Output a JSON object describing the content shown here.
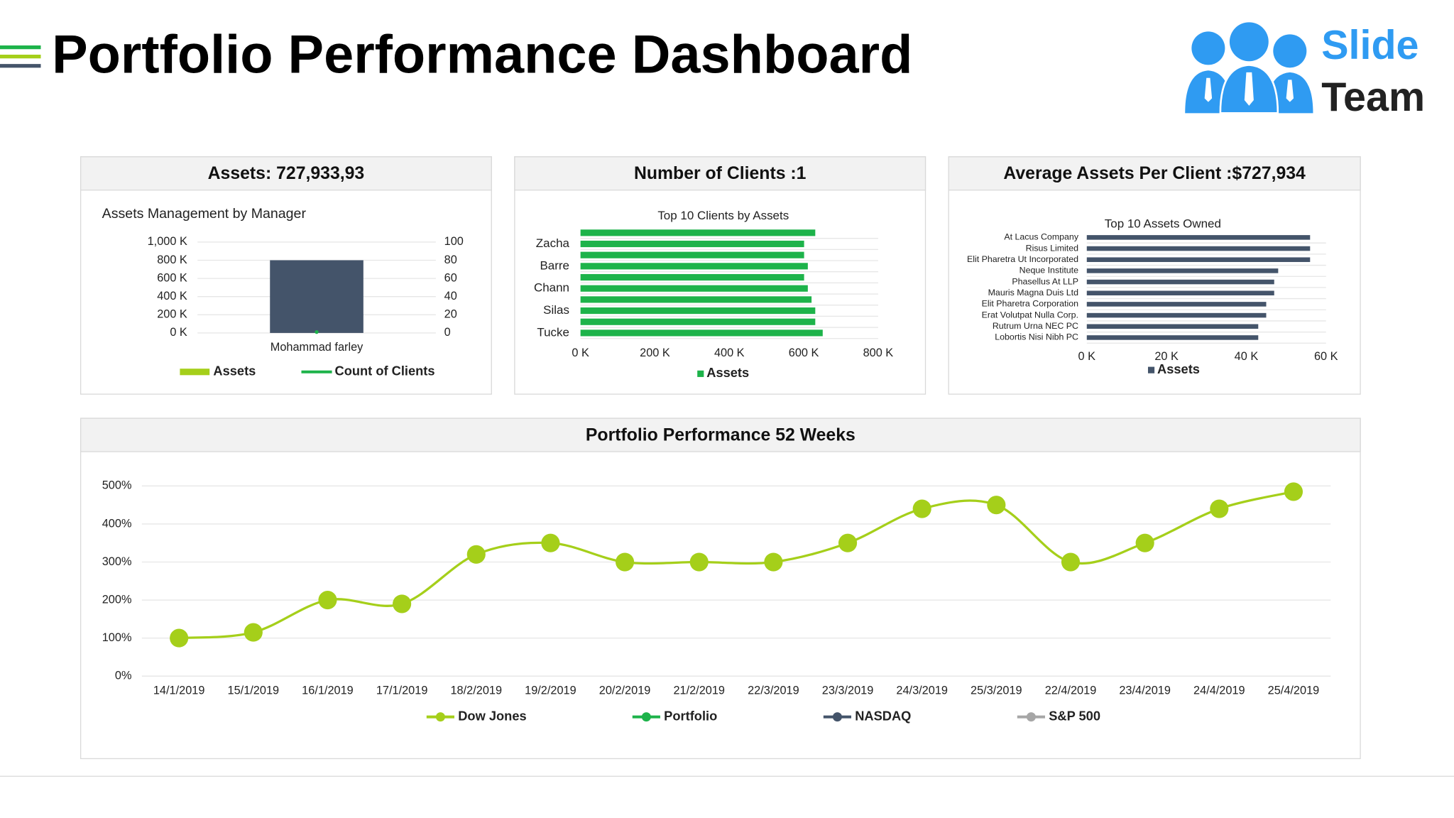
{
  "title": "Portfolio Performance Dashboard",
  "logo": {
    "top": "Slide",
    "bottom": "Team"
  },
  "chart_data": [
    {
      "type": "bar",
      "panel_title": "Assets: 727,933,93",
      "title": "Assets Management by Manager",
      "categories": [
        "Mohammad farley"
      ],
      "series": [
        {
          "name": "Assets",
          "color": "#44546a",
          "legend_color": "#a5cf1a",
          "values": [
            800000
          ]
        },
        {
          "name": "Count of Clients",
          "color": "#1db34a",
          "values": [
            1
          ],
          "axis": "y2",
          "type": "line"
        }
      ],
      "ylim": [
        0,
        1000000
      ],
      "yticks": [
        {
          "value": 0,
          "label": "0 K"
        },
        {
          "value": 200000,
          "label": "200 K"
        },
        {
          "value": 400000,
          "label": "400 K"
        },
        {
          "value": 600000,
          "label": "600 K"
        },
        {
          "value": 800000,
          "label": "800 K"
        },
        {
          "value": 1000000,
          "label": "1,000 K"
        }
      ],
      "y2lim": [
        0,
        100
      ],
      "y2ticks": [
        0,
        20,
        40,
        60,
        80,
        100
      ],
      "grid": true
    },
    {
      "type": "hbar",
      "panel_title": "Number of Clients :1",
      "title": "Top 10 Clients by Assets",
      "categories": [
        null,
        "Zacha",
        null,
        "Barre",
        null,
        "Chann",
        null,
        "Silas",
        null,
        "Tucke"
      ],
      "series": [
        {
          "name": "Assets",
          "color": "#1db34a",
          "values": [
            631000,
            601000,
            601000,
            611000,
            601000,
            611000,
            621000,
            631000,
            631000,
            651000
          ]
        }
      ],
      "xlim": [
        0,
        800000
      ],
      "xticks": [
        {
          "value": 0,
          "label": "0 K"
        },
        {
          "value": 200000,
          "label": "200 K"
        },
        {
          "value": 400000,
          "label": "400 K"
        },
        {
          "value": 600000,
          "label": "600 K"
        },
        {
          "value": 800000,
          "label": "800 K"
        }
      ],
      "grid": false
    },
    {
      "type": "hbar",
      "panel_title": "Average Assets Per Client :$727,934",
      "title": "Top 10 Assets Owned",
      "categories": [
        "At Lacus Company",
        "Risus Limited",
        "Elit Pharetra Ut Incorporated",
        "Neque Institute",
        "Phasellus At LLP",
        "Mauris Magna Duis Ltd",
        "Elit Pharetra Corporation",
        "Erat Volutpat Nulla Corp.",
        "Rutrum Urna NEC PC",
        "Lobortis Nisi Nibh PC"
      ],
      "series": [
        {
          "name": "Assets",
          "color": "#44546a",
          "values": [
            56000,
            56000,
            56000,
            48000,
            47000,
            47000,
            45000,
            45000,
            43000,
            43000
          ]
        }
      ],
      "xlim": [
        0,
        60000
      ],
      "xticks": [
        {
          "value": 0,
          "label": "0  K"
        },
        {
          "value": 20000,
          "label": "20  K"
        },
        {
          "value": 40000,
          "label": "40  K"
        },
        {
          "value": 60000,
          "label": "60  K"
        }
      ],
      "grid": false
    },
    {
      "type": "line",
      "panel_title": "Portfolio Performance 52 Weeks",
      "categories": [
        "14/1/2019",
        "15/1/2019",
        "16/1/2019",
        "17/1/2019",
        "18/2/2019",
        "19/2/2019",
        "20/2/2019",
        "21/2/2019",
        "22/3/2019",
        "23/3/2019",
        "24/3/2019",
        "25/3/2019",
        "22/4/2019",
        "23/4/2019",
        "24/4/2019",
        "25/4/2019"
      ],
      "series": [
        {
          "name": "Dow Jones",
          "color": "#a5cf1a",
          "values": [
            100,
            115,
            200,
            190,
            320,
            350,
            300,
            300,
            300,
            350,
            440,
            450,
            300,
            350,
            440,
            485
          ]
        },
        {
          "name": "Portfolio",
          "color": "#1db34a",
          "values": [
            null,
            null,
            null,
            null,
            null,
            null,
            null,
            null,
            null,
            null,
            null,
            null,
            null,
            null,
            null,
            null
          ]
        },
        {
          "name": "NASDAQ",
          "color": "#44546a",
          "values": [
            null,
            null,
            null,
            null,
            null,
            null,
            null,
            null,
            null,
            null,
            null,
            null,
            null,
            null,
            null,
            null
          ]
        },
        {
          "name": "S&P 500",
          "color": "#a6a6a6",
          "values": [
            null,
            null,
            null,
            null,
            null,
            null,
            null,
            null,
            null,
            null,
            null,
            null,
            null,
            null,
            null,
            null
          ]
        }
      ],
      "ylim": [
        0,
        500
      ],
      "yticks": [
        {
          "value": 0,
          "label": "0%"
        },
        {
          "value": 100,
          "label": "100%"
        },
        {
          "value": 200,
          "label": "200%"
        },
        {
          "value": 300,
          "label": "300%"
        },
        {
          "value": 400,
          "label": "400%"
        },
        {
          "value": 500,
          "label": "500%"
        }
      ],
      "grid": true
    }
  ]
}
